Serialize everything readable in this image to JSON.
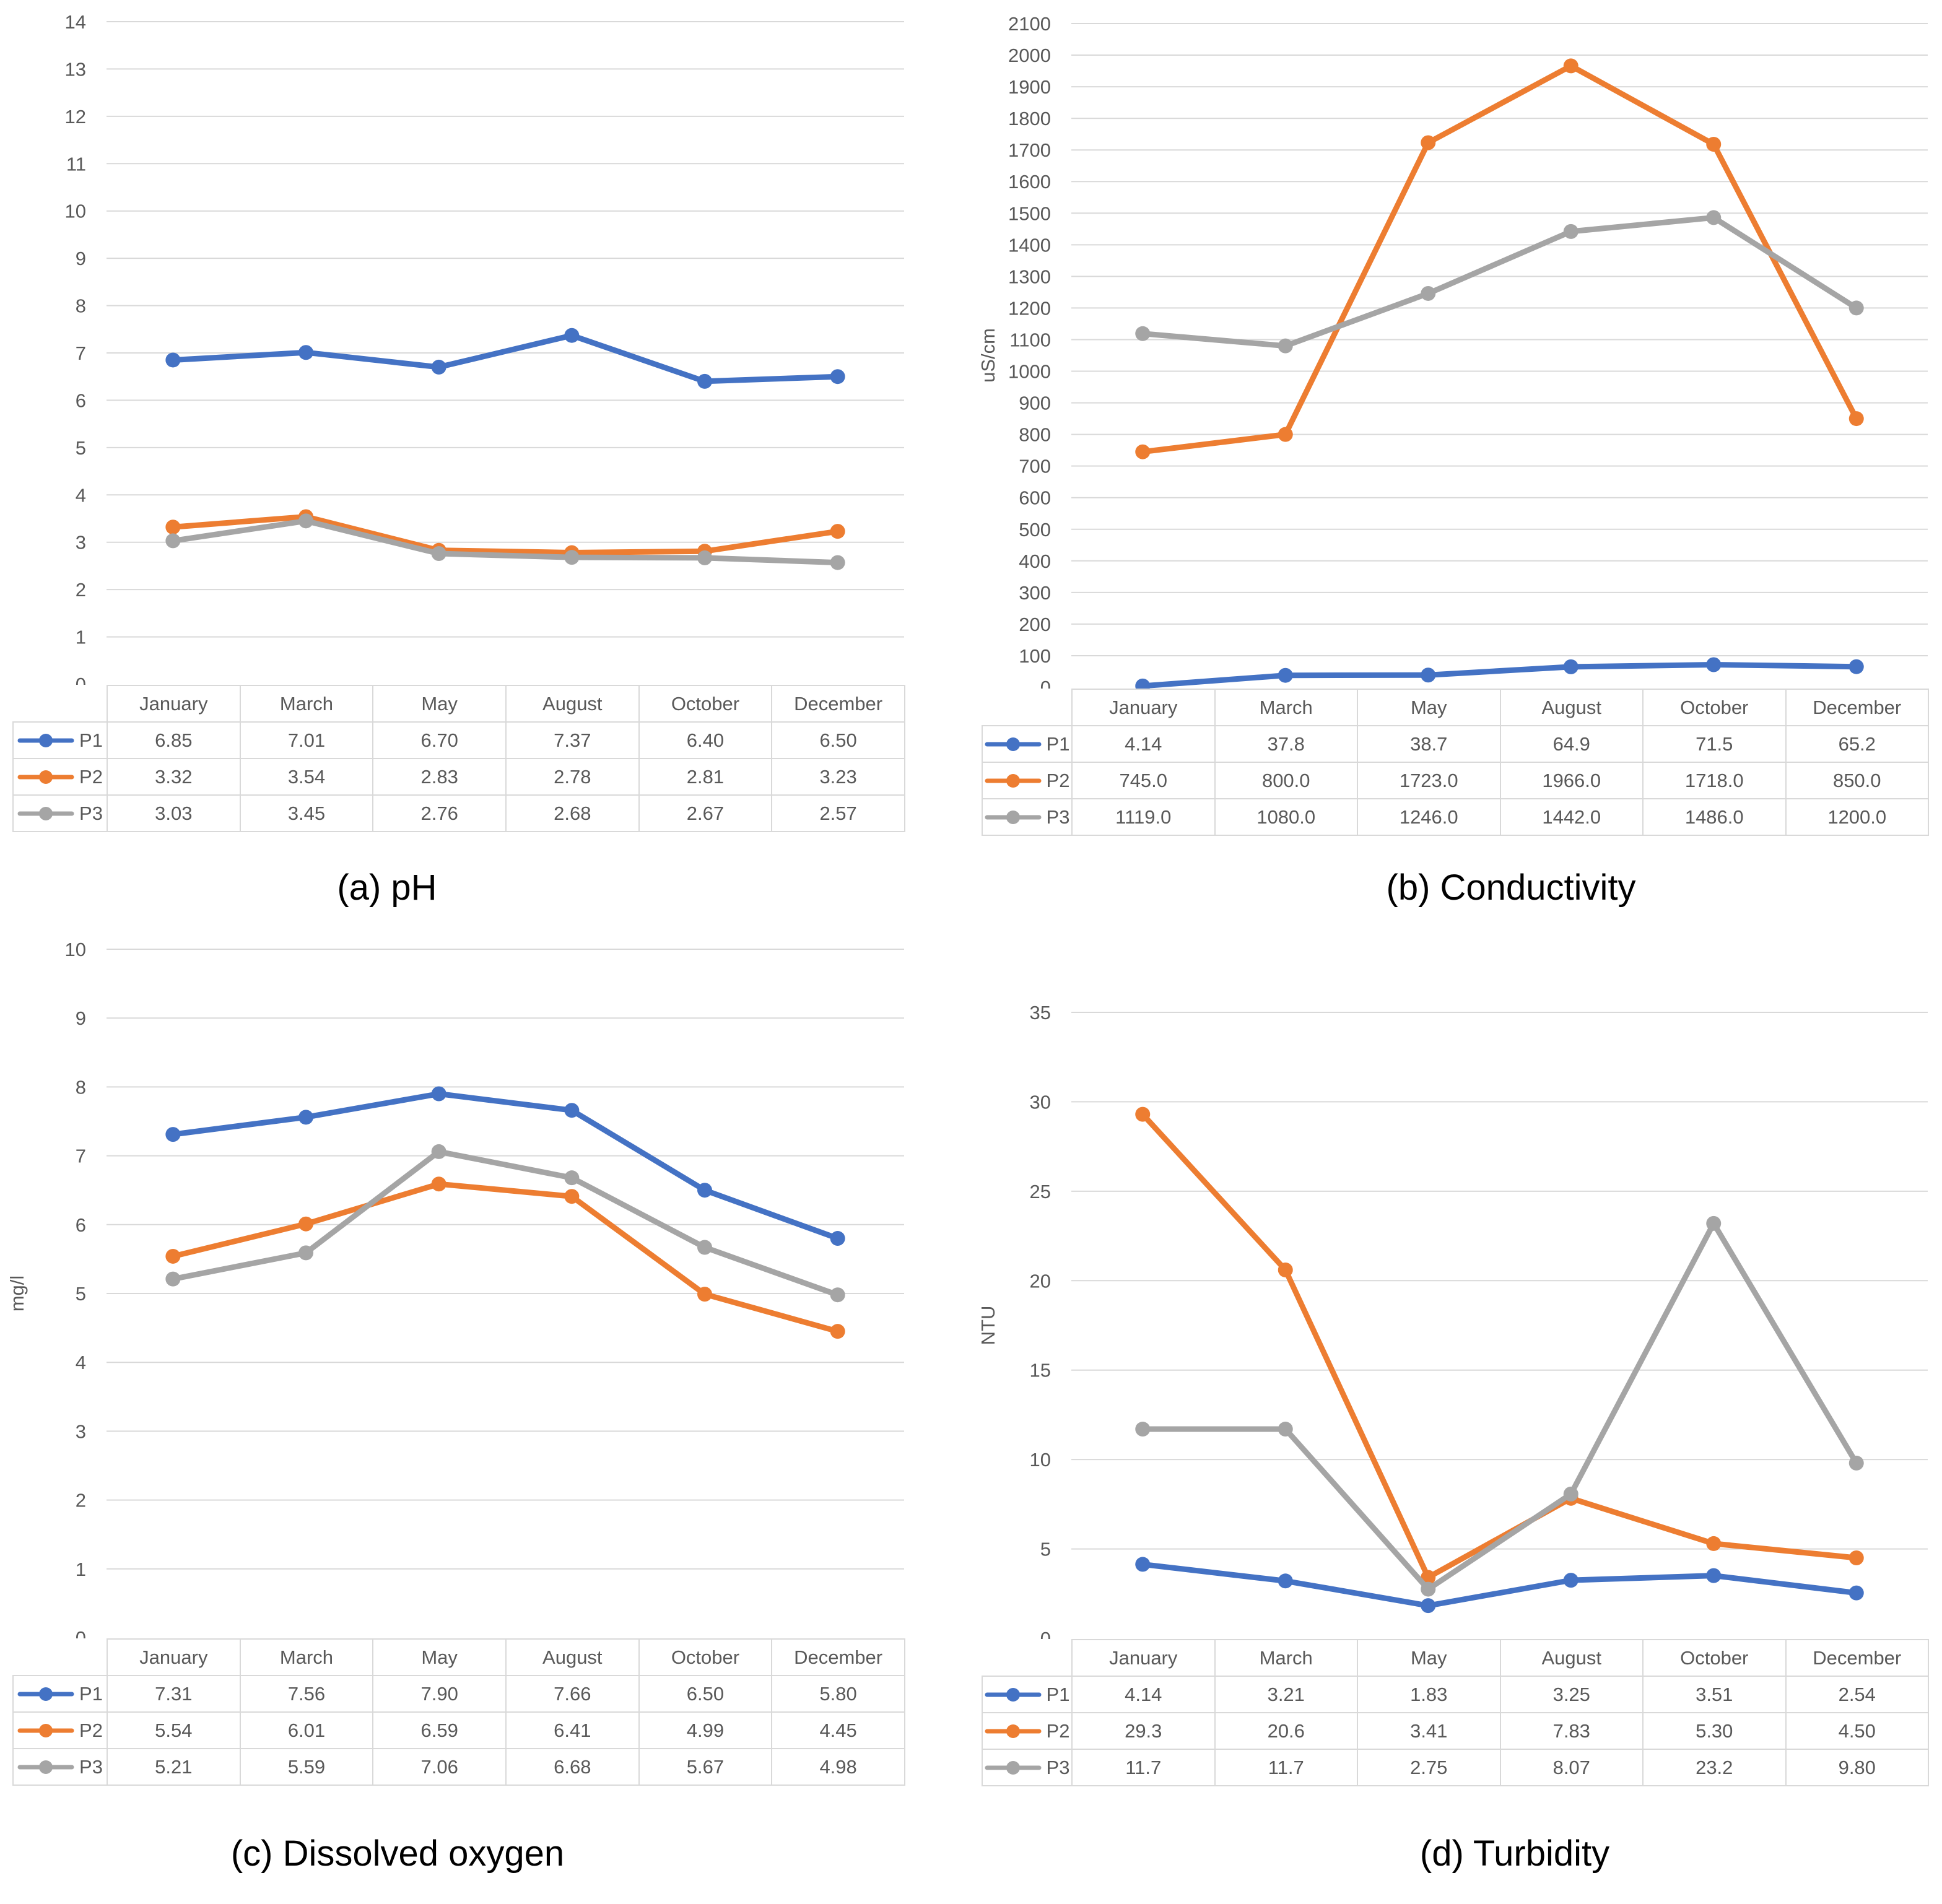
{
  "figure": {
    "description": "Four-panel water quality monitoring line charts with data tables",
    "panel_captions": [
      "(a) pH",
      "(b) Conductivity",
      "(c) Dissolved oxygen",
      "(d) Turbidity"
    ],
    "series_names": [
      "P1",
      "P2",
      "P3"
    ],
    "months": [
      "January",
      "March",
      "May",
      "August",
      "October",
      "December"
    ]
  },
  "colors": {
    "p1_blue": "#4472C4",
    "p2_orange": "#ED7D31",
    "p3_gray": "#A5A5A5",
    "gridline": "#D9D9D9",
    "axis_text": "#595959",
    "table_border": "#D9D9D9",
    "caption_text": "#000000"
  },
  "chart_data": [
    {
      "type": "line",
      "title": "(a) pH",
      "xlabel": "",
      "ylabel": "",
      "ylim": [
        0,
        14
      ],
      "ystep": 1,
      "grid": true,
      "legend_position": "table-left",
      "categories": [
        "January",
        "March",
        "May",
        "August",
        "October",
        "December"
      ],
      "series": [
        {
          "name": "P1",
          "color": "#4472C4",
          "values": [
            6.85,
            7.01,
            6.7,
            7.37,
            6.4,
            6.5
          ],
          "display": [
            "6.85",
            "7.01",
            "6.70",
            "7.37",
            "6.40",
            "6.50"
          ]
        },
        {
          "name": "P2",
          "color": "#ED7D31",
          "values": [
            3.32,
            3.54,
            2.83,
            2.78,
            2.81,
            3.23
          ],
          "display": [
            "3.32",
            "3.54",
            "2.83",
            "2.78",
            "2.81",
            "3.23"
          ]
        },
        {
          "name": "P3",
          "color": "#A5A5A5",
          "values": [
            3.03,
            3.45,
            2.76,
            2.68,
            2.67,
            2.57
          ],
          "display": [
            "3.03",
            "3.45",
            "2.76",
            "2.68",
            "2.67",
            "2.57"
          ]
        }
      ]
    },
    {
      "type": "line",
      "title": "(b) Conductivity",
      "xlabel": "",
      "ylabel": "uS/cm",
      "ylim": [
        0,
        2100
      ],
      "ystep": 100,
      "grid": true,
      "legend_position": "table-left",
      "categories": [
        "January",
        "March",
        "May",
        "August",
        "October",
        "December"
      ],
      "series": [
        {
          "name": "P1",
          "color": "#4472C4",
          "values": [
            4.14,
            37.8,
            38.7,
            64.9,
            71.5,
            65.2
          ],
          "display": [
            "4.14",
            "37.8",
            "38.7",
            "64.9",
            "71.5",
            "65.2"
          ]
        },
        {
          "name": "P2",
          "color": "#ED7D31",
          "values": [
            745,
            800,
            1723,
            1966,
            1718,
            850
          ],
          "display": [
            "745.0",
            "800.0",
            "1723.0",
            "1966.0",
            "1718.0",
            "850.0"
          ]
        },
        {
          "name": "P3",
          "color": "#A5A5A5",
          "values": [
            1119,
            1080,
            1246,
            1442,
            1486,
            1200
          ],
          "display": [
            "1119.0",
            "1080.0",
            "1246.0",
            "1442.0",
            "1486.0",
            "1200.0"
          ]
        }
      ]
    },
    {
      "type": "line",
      "title": "(c) Dissolved oxygen",
      "xlabel": "",
      "ylabel": "mg/l",
      "ylim": [
        0,
        10
      ],
      "ystep": 1,
      "grid": true,
      "legend_position": "table-left",
      "categories": [
        "January",
        "March",
        "May",
        "August",
        "October",
        "December"
      ],
      "series": [
        {
          "name": "P1",
          "color": "#4472C4",
          "values": [
            7.31,
            7.56,
            7.9,
            7.66,
            6.5,
            5.8
          ],
          "display": [
            "7.31",
            "7.56",
            "7.90",
            "7.66",
            "6.50",
            "5.80"
          ]
        },
        {
          "name": "P2",
          "color": "#ED7D31",
          "values": [
            5.54,
            6.01,
            6.59,
            6.41,
            4.99,
            4.45
          ],
          "display": [
            "5.54",
            "6.01",
            "6.59",
            "6.41",
            "4.99",
            "4.45"
          ]
        },
        {
          "name": "P3",
          "color": "#A5A5A5",
          "values": [
            5.21,
            5.59,
            7.06,
            6.68,
            5.67,
            4.98
          ],
          "display": [
            "5.21",
            "5.59",
            "7.06",
            "6.68",
            "5.67",
            "4.98"
          ]
        }
      ]
    },
    {
      "type": "line",
      "title": "(d) Turbidity",
      "xlabel": "",
      "ylabel": "NTU",
      "ylim": [
        0,
        35
      ],
      "ystep": 5,
      "grid": true,
      "legend_position": "table-left",
      "categories": [
        "January",
        "March",
        "May",
        "August",
        "October",
        "December"
      ],
      "series": [
        {
          "name": "P1",
          "color": "#4472C4",
          "values": [
            4.14,
            3.21,
            1.83,
            3.25,
            3.51,
            2.54
          ],
          "display": [
            "4.14",
            "3.21",
            "1.83",
            "3.25",
            "3.51",
            "2.54"
          ]
        },
        {
          "name": "P2",
          "color": "#ED7D31",
          "values": [
            29.3,
            20.6,
            3.41,
            7.83,
            5.3,
            4.5
          ],
          "display": [
            "29.3",
            "20.6",
            "3.41",
            "7.83",
            "5.30",
            "4.50"
          ]
        },
        {
          "name": "P3",
          "color": "#A5A5A5",
          "values": [
            11.7,
            11.7,
            2.75,
            8.07,
            23.2,
            9.8
          ],
          "display": [
            "11.7",
            "11.7",
            "2.75",
            "8.07",
            "23.2",
            "9.80"
          ]
        }
      ]
    }
  ]
}
